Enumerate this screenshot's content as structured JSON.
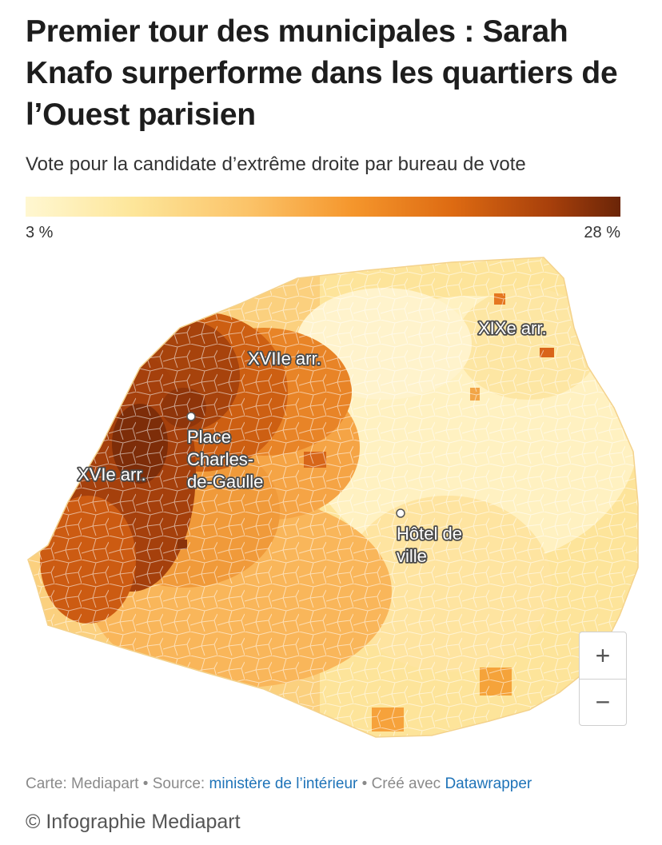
{
  "title": "Premier tour des municipales : Sarah Knafo surperforme dans les quartiers de l’Ouest parisien",
  "subtitle": "Vote pour la candidate d’extrême droite par bureau de vote",
  "legend": {
    "min_label": "3 %",
    "max_label": "28 %",
    "min_value": 3,
    "max_value": 28
  },
  "map_labels": {
    "xvii": "XVIIe arr.",
    "xix": "XIXe arr.",
    "xvi": "XVIe arr.",
    "etoile_line1": "Place",
    "etoile_line2": "Charles-",
    "etoile_line3": "de-Gaulle",
    "hdv_line1": "Hôtel de",
    "hdv_line2": "ville"
  },
  "zoom": {
    "in": "+",
    "out": "−"
  },
  "footer": {
    "carte": "Carte: Mediapart",
    "sep1": " • ",
    "source_label": "Source: ",
    "source_link": "ministère de l’intérieur",
    "sep2": " • ",
    "created_label": "Créé avec ",
    "created_link": "Datawrapper"
  },
  "credit": "© Infographie Mediapart",
  "colors": {
    "low": "#fff7d1",
    "mid": "#f5962c",
    "high": "#6b2508",
    "link": "#1e73b8"
  }
}
